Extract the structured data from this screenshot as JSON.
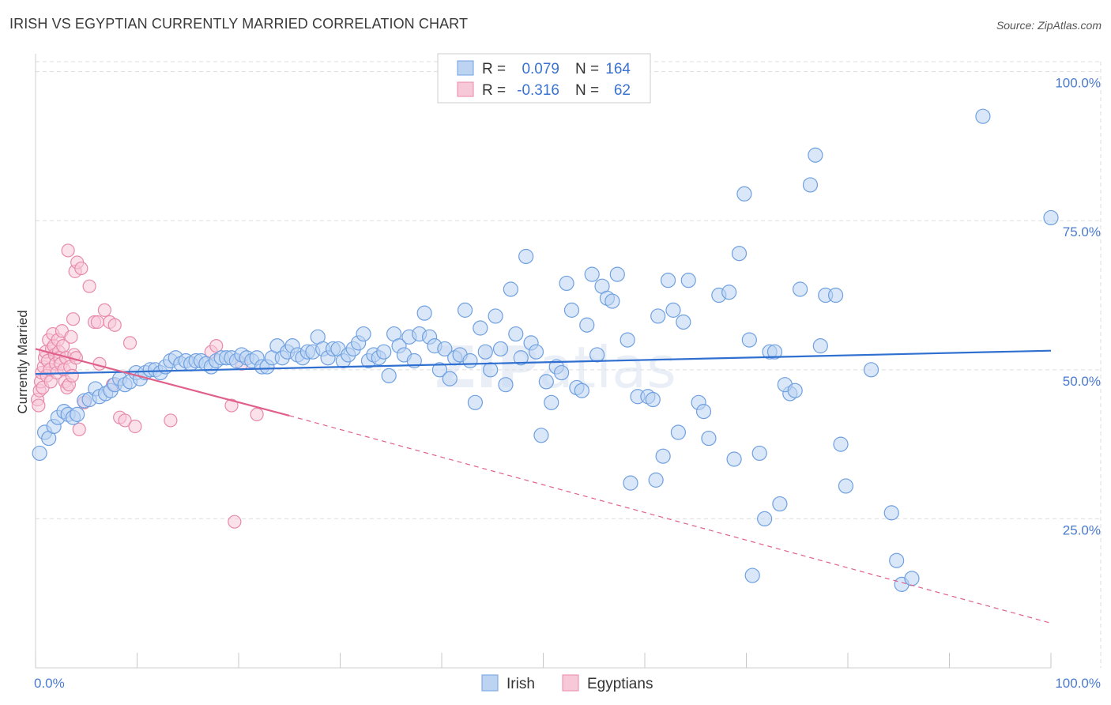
{
  "header": {
    "title": "IRISH VS EGYPTIAN CURRENTLY MARRIED CORRELATION CHART",
    "source": "Source: ZipAtlas.com"
  },
  "watermark": {
    "bold": "ZIP",
    "light": "atlas"
  },
  "colors": {
    "irish": "#6fa0e0",
    "irish_fill": "#bcd4f2",
    "irish_line": "#2f6fd0",
    "egyptians": "#e88aaa",
    "egyptians_fill": "#f7c8d8",
    "egyptians_line": "#e0608a",
    "grid": "#dddddd",
    "tick_text": "#4a7bd0"
  },
  "legend_box": {
    "row1": {
      "r_label": "R =",
      "r_value": "0.079",
      "n_label": "N =",
      "n_value": "164"
    },
    "row2": {
      "r_label": "R =",
      "r_value": "-0.316",
      "n_label": "N =",
      "n_value": "62"
    }
  },
  "bottom_legend": {
    "irish": "Irish",
    "egyptians": "Egyptians"
  },
  "chart_data": {
    "type": "scatter",
    "title": "IRISH VS EGYPTIAN CURRENTLY MARRIED CORRELATION CHART",
    "xlabel": "",
    "ylabel": "Currently Married",
    "xlim": [
      0,
      100
    ],
    "ylim": [
      0,
      103
    ],
    "x_tick_labels": [
      "0.0%",
      "100.0%"
    ],
    "y_tick_labels": [
      "25.0%",
      "50.0%",
      "75.0%",
      "100.0%"
    ],
    "y_ticks": [
      25,
      50,
      75,
      100
    ],
    "grid": true,
    "legend_position": "top-center",
    "series": [
      {
        "name": "Irish",
        "R": 0.079,
        "N": 164,
        "trend": {
          "x": [
            0,
            100
          ],
          "y": [
            49.3,
            53.2
          ],
          "style": "solid"
        },
        "points": [
          [
            0.4,
            36
          ],
          [
            0.9,
            39.5
          ],
          [
            1.3,
            38.5
          ],
          [
            1.8,
            40.5
          ],
          [
            2.2,
            42
          ],
          [
            2.8,
            43
          ],
          [
            3.2,
            42.5
          ],
          [
            3.7,
            42
          ],
          [
            4.1,
            42.5
          ],
          [
            4.8,
            44.8
          ],
          [
            5.3,
            45
          ],
          [
            5.9,
            46.8
          ],
          [
            6.3,
            45.5
          ],
          [
            6.9,
            46
          ],
          [
            7.4,
            46.5
          ],
          [
            7.8,
            47.5
          ],
          [
            8.3,
            48.5
          ],
          [
            8.8,
            47.5
          ],
          [
            9.3,
            48
          ],
          [
            9.9,
            49.5
          ],
          [
            10.3,
            48.5
          ],
          [
            10.8,
            49.5
          ],
          [
            11.3,
            50
          ],
          [
            11.8,
            50
          ],
          [
            12.3,
            49.5
          ],
          [
            12.8,
            50.5
          ],
          [
            13.3,
            51.5
          ],
          [
            13.8,
            52
          ],
          [
            14.3,
            51
          ],
          [
            14.8,
            51.5
          ],
          [
            15.3,
            51
          ],
          [
            15.8,
            51.5
          ],
          [
            16.3,
            51.5
          ],
          [
            16.8,
            51
          ],
          [
            17.3,
            50.5
          ],
          [
            17.8,
            51.5
          ],
          [
            18.3,
            52
          ],
          [
            18.8,
            52
          ],
          [
            19.3,
            52
          ],
          [
            19.8,
            51.5
          ],
          [
            20.3,
            52.5
          ],
          [
            20.8,
            52
          ],
          [
            21.3,
            51.5
          ],
          [
            21.8,
            52
          ],
          [
            22.3,
            50.5
          ],
          [
            22.8,
            50.5
          ],
          [
            23.3,
            52
          ],
          [
            23.8,
            54
          ],
          [
            24.3,
            52
          ],
          [
            24.8,
            53
          ],
          [
            25.3,
            54
          ],
          [
            25.8,
            52.5
          ],
          [
            26.3,
            52
          ],
          [
            26.8,
            53
          ],
          [
            27.3,
            53
          ],
          [
            27.8,
            55.5
          ],
          [
            28.3,
            53.5
          ],
          [
            28.8,
            52
          ],
          [
            29.3,
            53.5
          ],
          [
            29.8,
            53.5
          ],
          [
            30.3,
            51.5
          ],
          [
            30.8,
            52.5
          ],
          [
            31.3,
            53.5
          ],
          [
            31.8,
            54.5
          ],
          [
            32.3,
            56
          ],
          [
            32.8,
            51.5
          ],
          [
            33.3,
            52.5
          ],
          [
            33.8,
            52
          ],
          [
            34.3,
            53
          ],
          [
            34.8,
            49
          ],
          [
            35.3,
            56
          ],
          [
            35.8,
            54
          ],
          [
            36.3,
            52.5
          ],
          [
            36.8,
            55.5
          ],
          [
            37.3,
            51.5
          ],
          [
            37.8,
            56
          ],
          [
            38.3,
            59.5
          ],
          [
            38.8,
            55.5
          ],
          [
            39.3,
            54
          ],
          [
            39.8,
            50
          ],
          [
            40.3,
            53.5
          ],
          [
            40.8,
            48.5
          ],
          [
            41.3,
            52
          ],
          [
            41.8,
            52.5
          ],
          [
            42.3,
            60
          ],
          [
            42.8,
            51.5
          ],
          [
            43.3,
            44.5
          ],
          [
            43.8,
            57
          ],
          [
            44.3,
            53
          ],
          [
            44.8,
            50
          ],
          [
            45.3,
            59
          ],
          [
            45.8,
            53.5
          ],
          [
            46.3,
            47.5
          ],
          [
            46.8,
            63.5
          ],
          [
            47.3,
            56
          ],
          [
            47.8,
            52
          ],
          [
            48.3,
            69
          ],
          [
            48.8,
            54.5
          ],
          [
            49.3,
            53
          ],
          [
            49.8,
            39
          ],
          [
            50.3,
            48
          ],
          [
            50.8,
            44.5
          ],
          [
            51.3,
            50.5
          ],
          [
            51.8,
            49.5
          ],
          [
            52.3,
            64.5
          ],
          [
            52.8,
            60
          ],
          [
            53.3,
            47
          ],
          [
            53.8,
            46.5
          ],
          [
            54.3,
            57.5
          ],
          [
            54.8,
            66
          ],
          [
            55.3,
            52.5
          ],
          [
            55.8,
            64
          ],
          [
            56.3,
            62
          ],
          [
            56.8,
            61.5
          ],
          [
            57.3,
            66
          ],
          [
            58.3,
            55
          ],
          [
            59.3,
            45.5
          ],
          [
            60.3,
            45.5
          ],
          [
            60.8,
            45
          ],
          [
            61.3,
            59
          ],
          [
            61.8,
            35.5
          ],
          [
            62.3,
            65
          ],
          [
            62.8,
            60
          ],
          [
            63.3,
            39.5
          ],
          [
            63.8,
            58
          ],
          [
            64.3,
            65
          ],
          [
            65.3,
            44.5
          ],
          [
            65.8,
            43
          ],
          [
            66.3,
            38.5
          ],
          [
            67.3,
            62.5
          ],
          [
            68.3,
            63
          ],
          [
            68.8,
            35
          ],
          [
            69.3,
            69.5
          ],
          [
            69.8,
            79.5
          ],
          [
            70.3,
            55
          ],
          [
            71.3,
            36
          ],
          [
            71.8,
            25
          ],
          [
            72.3,
            53
          ],
          [
            72.8,
            53
          ],
          [
            73.3,
            27.5
          ],
          [
            74.3,
            46
          ],
          [
            75.3,
            63.5
          ],
          [
            76.3,
            81
          ],
          [
            76.8,
            86
          ],
          [
            77.3,
            54
          ],
          [
            77.8,
            62.5
          ],
          [
            78.8,
            62.5
          ],
          [
            79.3,
            37.5
          ],
          [
            79.8,
            30.5
          ],
          [
            82.3,
            50
          ],
          [
            84.3,
            26
          ],
          [
            84.8,
            18
          ],
          [
            85.3,
            14
          ],
          [
            86.3,
            15
          ],
          [
            93.3,
            92.5
          ],
          [
            100,
            75.5
          ],
          [
            58.6,
            31
          ],
          [
            61.1,
            31.5
          ],
          [
            70.6,
            15.5
          ],
          [
            73.8,
            47.5
          ],
          [
            74.8,
            46.5
          ]
        ]
      },
      {
        "name": "Egyptians",
        "R": -0.316,
        "N": 62,
        "trend": {
          "solid": {
            "x": [
              0,
              25
            ],
            "y": [
              53.5,
              42.3
            ]
          },
          "dashed": {
            "x": [
              25,
              100
            ],
            "y": [
              42.3,
              7.5
            ]
          }
        },
        "points": [
          [
            0.2,
            45
          ],
          [
            0.3,
            44
          ],
          [
            0.4,
            46.5
          ],
          [
            0.5,
            48
          ],
          [
            0.6,
            49.5
          ],
          [
            0.7,
            47
          ],
          [
            0.8,
            50.5
          ],
          [
            0.9,
            52
          ],
          [
            1.0,
            53
          ],
          [
            1.1,
            49
          ],
          [
            1.2,
            51.5
          ],
          [
            1.3,
            55
          ],
          [
            1.4,
            50
          ],
          [
            1.5,
            48
          ],
          [
            1.6,
            53.5
          ],
          [
            1.7,
            56
          ],
          [
            1.8,
            54
          ],
          [
            1.9,
            52.5
          ],
          [
            2.0,
            51
          ],
          [
            2.1,
            49.5
          ],
          [
            2.2,
            55
          ],
          [
            2.3,
            53
          ],
          [
            2.4,
            52
          ],
          [
            2.5,
            51
          ],
          [
            2.6,
            56.5
          ],
          [
            2.7,
            54
          ],
          [
            2.8,
            50
          ],
          [
            2.9,
            48
          ],
          [
            3.0,
            52
          ],
          [
            3.1,
            47
          ],
          [
            3.2,
            70
          ],
          [
            3.3,
            47.5
          ],
          [
            3.4,
            50.5
          ],
          [
            3.5,
            55.5
          ],
          [
            3.6,
            49
          ],
          [
            3.7,
            58.5
          ],
          [
            3.8,
            52.5
          ],
          [
            3.9,
            66.5
          ],
          [
            4.0,
            52
          ],
          [
            4.1,
            68
          ],
          [
            4.3,
            40
          ],
          [
            4.5,
            67
          ],
          [
            4.8,
            44.5
          ],
          [
            5.3,
            64
          ],
          [
            5.8,
            58
          ],
          [
            6.3,
            51
          ],
          [
            6.8,
            60
          ],
          [
            7.3,
            58
          ],
          [
            7.8,
            57.5
          ],
          [
            8.3,
            42
          ],
          [
            8.8,
            41.5
          ],
          [
            9.3,
            54.5
          ],
          [
            9.8,
            40.5
          ],
          [
            13.3,
            41.5
          ],
          [
            17.3,
            53
          ],
          [
            17.8,
            54
          ],
          [
            19.3,
            44
          ],
          [
            19.6,
            24.5
          ],
          [
            20.3,
            51
          ],
          [
            21.8,
            42.5
          ],
          [
            6.1,
            58
          ],
          [
            7.6,
            47.5
          ]
        ]
      }
    ]
  }
}
